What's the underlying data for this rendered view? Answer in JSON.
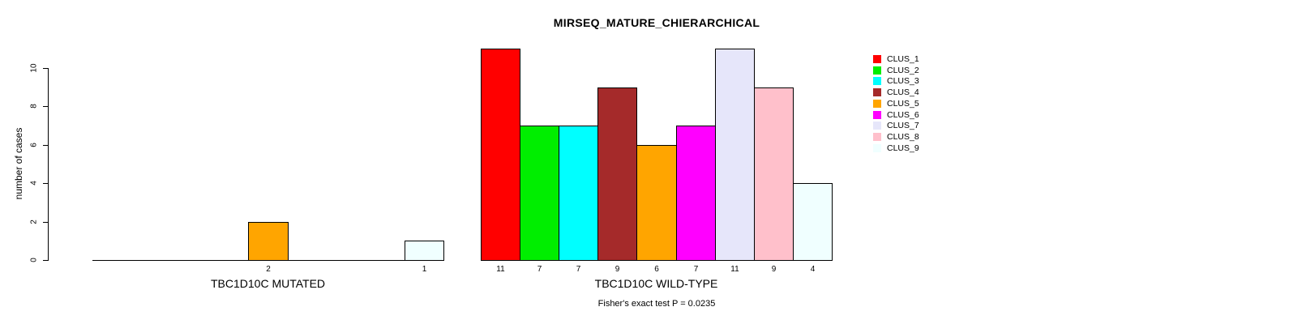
{
  "chart_data": {
    "type": "bar",
    "title": "MIRSEQ_MATURE_CHIERARCHICAL",
    "ylabel": "number of cases",
    "ylim": [
      0,
      10
    ],
    "yticks": [
      0,
      2,
      4,
      6,
      8,
      10
    ],
    "grid": false,
    "legend_position": "top-right",
    "clusters": [
      {
        "label": "CLUS_1",
        "color": "#FF0000"
      },
      {
        "label": "CLUS_2",
        "color": "#00EE00"
      },
      {
        "label": "CLUS_3",
        "color": "#00FFFF"
      },
      {
        "label": "CLUS_4",
        "color": "#A52A2A"
      },
      {
        "label": "CLUS_5",
        "color": "#FFA500"
      },
      {
        "label": "CLUS_6",
        "color": "#FF00FF"
      },
      {
        "label": "CLUS_7",
        "color": "#E6E6FA"
      },
      {
        "label": "CLUS_8",
        "color": "#FFC0CB"
      },
      {
        "label": "CLUS_9",
        "color": "#F0FFFF"
      }
    ],
    "groups": [
      {
        "label": "TBC1D10C MUTATED",
        "values": [
          0,
          0,
          0,
          0,
          2,
          0,
          0,
          0,
          1
        ]
      },
      {
        "label": "TBC1D10C WILD-TYPE",
        "values": [
          11,
          7,
          7,
          9,
          6,
          7,
          11,
          9,
          4
        ]
      }
    ],
    "annotation": "Fisher's exact test P = 0.0235"
  }
}
